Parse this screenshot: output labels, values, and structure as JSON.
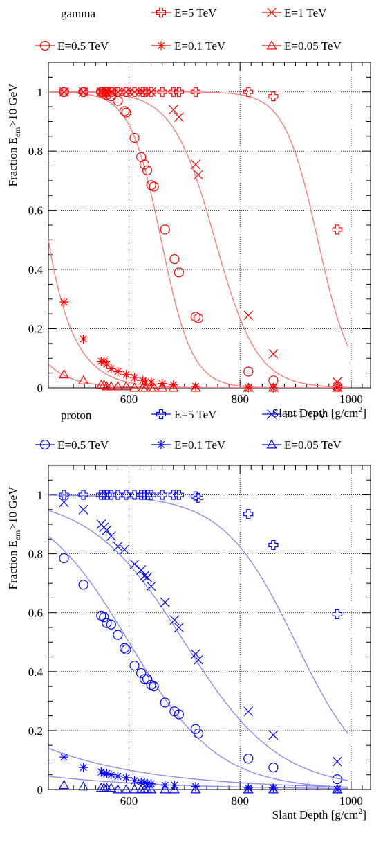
{
  "colors": {
    "gamma": "#ff0000",
    "gamma_fit": "#f08080",
    "proton": "#0000ff",
    "proton_fit": "#8c8cf0",
    "grid": "#000000"
  },
  "chart_data": [
    {
      "type": "scatter",
      "legend_title": "gamma",
      "xlabel": "Slant Depth [g/cm²]",
      "xlabel_main": "Slant Depth [g/cm",
      "xlabel_sup": "2",
      "xlabel_close": "]",
      "ylabel": "Fraction E_em>10 GeV",
      "ylabel_main": "Fraction E",
      "ylabel_sub": "em",
      "ylabel_rest": ">10 GeV",
      "xlim": [
        455,
        1035
      ],
      "ylim": [
        0,
        1.1
      ],
      "xticks": [
        "600",
        "800",
        "1000"
      ],
      "xtick_values": [
        600,
        800,
        1000
      ],
      "yticks": [
        "0",
        "0.2",
        "0.4",
        "0.6",
        "0.8",
        "1"
      ],
      "ytick_values": [
        0,
        0.2,
        0.4,
        0.6,
        0.8,
        1
      ],
      "grid": true,
      "legend_position": "top",
      "series": [
        {
          "name": "E=5 TeV",
          "marker": "cross",
          "x": [
            483,
            518,
            550,
            555,
            560,
            568,
            580,
            595,
            610,
            625,
            630,
            640,
            660,
            680,
            690,
            720,
            815,
            860,
            975
          ],
          "y": [
            1,
            1,
            1,
            1,
            1,
            1,
            1,
            1,
            1,
            1,
            1,
            1,
            1,
            1,
            1,
            1,
            1,
            0.985,
            0.535
          ],
          "fit": {
            "mid": 940,
            "width": 30
          }
        },
        {
          "name": "E=1 TeV",
          "marker": "x",
          "x": [
            483,
            518,
            550,
            555,
            560,
            568,
            580,
            595,
            610,
            625,
            640,
            680,
            690,
            720,
            725,
            815,
            860,
            975
          ],
          "y": [
            1,
            1,
            1,
            1,
            1,
            1,
            1,
            1,
            1,
            1,
            1,
            0.94,
            0.915,
            0.755,
            0.72,
            0.245,
            0.115,
            0.02
          ],
          "fit": {
            "mid": 755,
            "width": 38
          }
        },
        {
          "name": "E=0.5 TeV",
          "marker": "circle",
          "x": [
            483,
            518,
            550,
            555,
            560,
            568,
            580,
            592,
            595,
            610,
            622,
            628,
            633,
            640,
            645,
            665,
            682,
            690,
            720,
            725,
            815,
            860,
            975
          ],
          "y": [
            1,
            1,
            1,
            0.995,
            0.99,
            0.985,
            0.97,
            0.935,
            0.93,
            0.845,
            0.78,
            0.755,
            0.735,
            0.685,
            0.68,
            0.535,
            0.435,
            0.39,
            0.24,
            0.235,
            0.055,
            0.025,
            0.005
          ],
          "fit": {
            "mid": 658,
            "width": 28
          }
        },
        {
          "name": "E=0.1 TeV",
          "marker": "star",
          "x": [
            483,
            518,
            550,
            555,
            560,
            568,
            580,
            595,
            610,
            625,
            630,
            640,
            660,
            680,
            720,
            815,
            860,
            975
          ],
          "y": [
            0.29,
            0.165,
            0.09,
            0.09,
            0.08,
            0.065,
            0.055,
            0.045,
            0.035,
            0.025,
            0.02,
            0.02,
            0.015,
            0.01,
            0.005,
            0,
            0,
            0
          ],
          "fit": {
            "a": 0.5,
            "b": 0.0228
          }
        },
        {
          "name": "E=0.05 TeV",
          "marker": "triangle",
          "x": [
            483,
            518,
            550,
            555,
            560,
            568,
            580,
            595,
            610,
            625,
            630,
            640,
            645,
            660,
            680,
            720,
            815,
            860,
            975
          ],
          "y": [
            0.045,
            0.025,
            0.01,
            0.01,
            0.005,
            0.005,
            0.005,
            0.005,
            0,
            0,
            0,
            0,
            0,
            0,
            0,
            0,
            0,
            0,
            0
          ],
          "fit": {
            "a": 0.08,
            "b": 0.0225
          }
        }
      ]
    },
    {
      "type": "scatter",
      "legend_title": "proton",
      "xlabel": "Slant Depth [g/cm²]",
      "xlabel_main": "Slant Depth [g/cm",
      "xlabel_sup": "2",
      "xlabel_close": "]",
      "ylabel": "Fraction E_em>10 GeV",
      "ylabel_main": "Fraction E",
      "ylabel_sub": "em",
      "ylabel_rest": ">10 GeV",
      "xlim": [
        455,
        1035
      ],
      "ylim": [
        0,
        1.1
      ],
      "xticks": [
        "600",
        "800",
        "1000"
      ],
      "xtick_values": [
        600,
        800,
        1000
      ],
      "yticks": [
        "0",
        "0.2",
        "0.4",
        "0.6",
        "0.8",
        "1"
      ],
      "ytick_values": [
        0,
        0.2,
        0.4,
        0.6,
        0.8,
        1
      ],
      "grid": true,
      "legend_position": "top",
      "series": [
        {
          "name": "E=5 TeV",
          "marker": "cross",
          "x": [
            483,
            518,
            550,
            555,
            560,
            568,
            580,
            595,
            610,
            622,
            628,
            633,
            640,
            660,
            680,
            690,
            720,
            725,
            815,
            860,
            975
          ],
          "y": [
            1,
            1,
            1,
            1,
            1,
            1,
            1,
            1,
            1,
            1,
            1,
            1,
            1,
            1,
            1,
            1,
            0.995,
            0.99,
            0.935,
            0.83,
            0.595
          ],
          "fit": {
            "mid": 900,
            "width": 65
          }
        },
        {
          "name": "E=1 TeV",
          "marker": "x",
          "x": [
            483,
            518,
            550,
            555,
            560,
            568,
            580,
            592,
            610,
            622,
            628,
            633,
            640,
            665,
            682,
            690,
            720,
            725,
            815,
            860,
            975
          ],
          "y": [
            0.975,
            0.95,
            0.9,
            0.89,
            0.88,
            0.86,
            0.825,
            0.815,
            0.765,
            0.745,
            0.725,
            0.72,
            0.69,
            0.635,
            0.575,
            0.55,
            0.46,
            0.44,
            0.265,
            0.185,
            0.095
          ],
          "fit": {
            "mid": 700,
            "width": 85
          }
        },
        {
          "name": "E=0.5 TeV",
          "marker": "circle",
          "x": [
            483,
            518,
            550,
            555,
            560,
            568,
            580,
            592,
            595,
            610,
            622,
            628,
            633,
            640,
            645,
            665,
            682,
            690,
            720,
            725,
            815,
            860,
            975
          ],
          "y": [
            0.785,
            0.695,
            0.59,
            0.585,
            0.565,
            0.56,
            0.525,
            0.48,
            0.475,
            0.42,
            0.395,
            0.375,
            0.375,
            0.355,
            0.35,
            0.295,
            0.265,
            0.255,
            0.205,
            0.19,
            0.105,
            0.075,
            0.035
          ],
          "fit": {
            "mid": 600,
            "width": 80
          }
        },
        {
          "name": "E=0.1 TeV",
          "marker": "star",
          "x": [
            483,
            518,
            550,
            555,
            560,
            568,
            580,
            595,
            610,
            622,
            628,
            633,
            640,
            665,
            682,
            720,
            815,
            860,
            975
          ],
          "y": [
            0.11,
            0.075,
            0.06,
            0.055,
            0.055,
            0.05,
            0.045,
            0.04,
            0.03,
            0.025,
            0.025,
            0.02,
            0.02,
            0.015,
            0.015,
            0.01,
            0.005,
            0.005,
            0
          ],
          "fit": {
            "a": 0.14,
            "b": 0.0052
          }
        },
        {
          "name": "E=0.05 TeV",
          "marker": "triangle",
          "x": [
            483,
            518,
            550,
            555,
            560,
            568,
            580,
            595,
            610,
            622,
            628,
            633,
            640,
            665,
            682,
            720,
            815,
            860,
            975
          ],
          "y": [
            0.015,
            0.01,
            0.005,
            0.005,
            0.005,
            0.005,
            0,
            0,
            0,
            0,
            0,
            0,
            0,
            0,
            0,
            0,
            0,
            0,
            0
          ],
          "fit": {
            "a": 0.045,
            "b": 0.0048
          }
        }
      ]
    }
  ]
}
